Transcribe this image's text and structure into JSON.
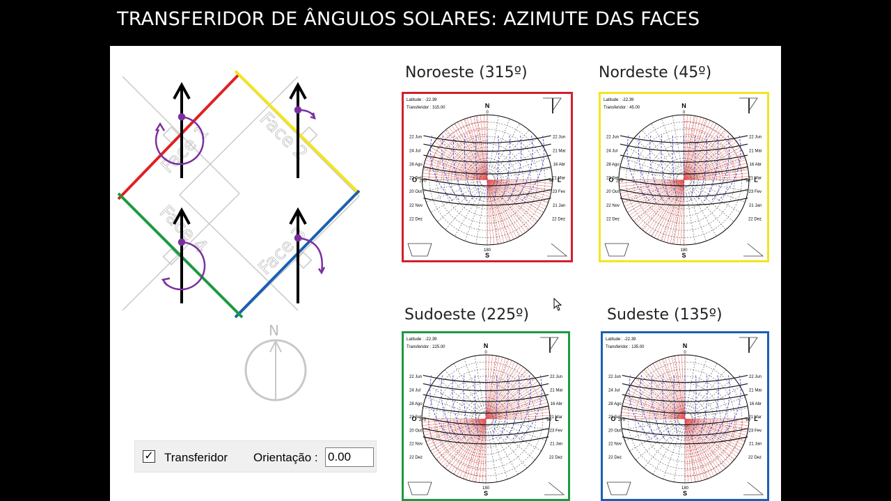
{
  "header": {
    "title": "TRANSFERIDOR DE ÂNGULOS SOLARES: AZIMUTE DAS FACES"
  },
  "diagram": {
    "faces": [
      "Face 1",
      "Face 2",
      "Face 3",
      "Face 4"
    ],
    "compass_label": "N",
    "colors": {
      "face1": "#e02020",
      "face2": "#f2e51e",
      "face3": "#1a60b0",
      "face4": "#1a9a40",
      "arc": "#7b2f9e"
    }
  },
  "charts": [
    {
      "title": "Noroeste (315º)",
      "color": "#d0202c",
      "latitude": "Latitude : -22.39",
      "transferidor": "Transferidor : 315.00"
    },
    {
      "title": "Nordeste (45º)",
      "color": "#f2e51e",
      "latitude": "Latitude : -22.39",
      "transferidor": "Transferidor : 45.00"
    },
    {
      "title": "Sudoeste (225º)",
      "color": "#1a9a40",
      "latitude": "Latitude : -22.39",
      "transferidor": "Transferidor : 225.00"
    },
    {
      "title": "Sudeste (135º)",
      "color": "#1a60b0",
      "latitude": "Latitude : -22.39",
      "transferidor": "Transferidor : 135.00"
    }
  ],
  "chart_common": {
    "north": "N",
    "south": "S",
    "east": "L",
    "west": "O",
    "north_deg": "0",
    "south_deg": "180",
    "east_deg": "90",
    "west_deg": "270",
    "left_dates": [
      "22 Jun",
      "24 Jul",
      "28 Ago",
      "23 Set",
      "20 Out",
      "22 Nov",
      "22 Dez"
    ],
    "right_dates": [
      "22 Jun",
      "21 Mai",
      "16 Abr",
      "21 Mar",
      "23 Fev",
      "21 Jan",
      "22 Dez"
    ]
  },
  "toolbar": {
    "checkbox_label": "Transferidor",
    "checked": true,
    "orientation_label": "Orientação :",
    "orientation_value": "0.00"
  }
}
